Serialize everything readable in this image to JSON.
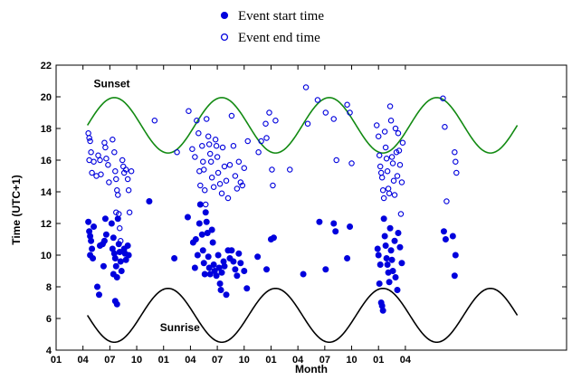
{
  "chart_data": {
    "type": "scatter",
    "xlabel": "Month",
    "ylabel": "Time (UTC+1)",
    "ylim": [
      4,
      22
    ],
    "xlim": [
      0,
      57
    ],
    "yticks": [
      4,
      6,
      8,
      10,
      12,
      14,
      16,
      18,
      20,
      22
    ],
    "xticks": [
      {
        "x": 0,
        "label": "01"
      },
      {
        "x": 3,
        "label": "04"
      },
      {
        "x": 6,
        "label": "07"
      },
      {
        "x": 9,
        "label": "10"
      },
      {
        "x": 12,
        "label": "01"
      },
      {
        "x": 15,
        "label": "04"
      },
      {
        "x": 18,
        "label": "07"
      },
      {
        "x": 21,
        "label": "10"
      },
      {
        "x": 24,
        "label": "01"
      },
      {
        "x": 27,
        "label": "04"
      },
      {
        "x": 30,
        "label": "07"
      },
      {
        "x": 33,
        "label": "10"
      },
      {
        "x": 36,
        "label": "01"
      },
      {
        "x": 39,
        "label": "04"
      }
    ],
    "legend": {
      "placement": "top-center",
      "entries": [
        {
          "label": "Event start time",
          "marker": "filled-circle"
        },
        {
          "label": "Event end time",
          "marker": "open-circle"
        }
      ]
    },
    "annotations": [
      {
        "text": "Sunset",
        "x": 4.2,
        "y": 20.6
      },
      {
        "text": "Sunrise",
        "x": 11.6,
        "y": 5.2
      }
    ],
    "colors": {
      "points": "#0000dd",
      "sunset": "#128a12",
      "sunrise": "#000000"
    },
    "sunset_curve": {
      "x_start": 3.5,
      "x_end": 51.5,
      "center": 18.2,
      "amplitude": 1.75,
      "period": 12,
      "peak_x": 6.5
    },
    "sunrise_curve": {
      "x_start": 3.5,
      "x_end": 51.5,
      "center": 6.2,
      "amplitude": 1.7,
      "period": 12,
      "trough_x": 6.5
    },
    "series": [
      {
        "name": "Event start time",
        "points": [
          [
            3.6,
            12.1
          ],
          [
            3.7,
            11.5
          ],
          [
            3.8,
            11.2
          ],
          [
            3.9,
            10.9
          ],
          [
            4.0,
            10.4
          ],
          [
            3.8,
            10.0
          ],
          [
            4.1,
            9.8
          ],
          [
            4.2,
            11.8
          ],
          [
            4.6,
            8.0
          ],
          [
            4.8,
            7.5
          ],
          [
            4.9,
            10.6
          ],
          [
            5.2,
            10.7
          ],
          [
            5.3,
            9.3
          ],
          [
            5.5,
            12.3
          ],
          [
            5.6,
            11.3
          ],
          [
            5.4,
            10.9
          ],
          [
            6.2,
            12.0
          ],
          [
            6.4,
            11.1
          ],
          [
            6.3,
            10.4
          ],
          [
            6.5,
            10.1
          ],
          [
            6.6,
            9.8
          ],
          [
            6.7,
            9.3
          ],
          [
            6.4,
            8.8
          ],
          [
            6.8,
            8.6
          ],
          [
            6.6,
            7.1
          ],
          [
            6.8,
            6.9
          ],
          [
            7.0,
            10.7
          ],
          [
            7.1,
            10.2
          ],
          [
            7.2,
            9.6
          ],
          [
            7.3,
            9.0
          ],
          [
            6.9,
            12.3
          ],
          [
            7.6,
            10.4
          ],
          [
            7.7,
            10.1
          ],
          [
            7.8,
            9.7
          ],
          [
            8.0,
            10.6
          ],
          [
            8.1,
            10.0
          ],
          [
            10.4,
            13.4
          ],
          [
            13.2,
            9.8
          ],
          [
            14.7,
            12.4
          ],
          [
            15.3,
            10.8
          ],
          [
            15.5,
            9.2
          ],
          [
            15.6,
            11.0
          ],
          [
            15.8,
            10.0
          ],
          [
            16.0,
            12.0
          ],
          [
            16.1,
            13.2
          ],
          [
            16.3,
            11.3
          ],
          [
            16.4,
            10.3
          ],
          [
            16.5,
            9.5
          ],
          [
            16.6,
            8.8
          ],
          [
            16.7,
            12.7
          ],
          [
            16.8,
            12.1
          ],
          [
            16.9,
            11.4
          ],
          [
            17.0,
            9.9
          ],
          [
            17.1,
            9.2
          ],
          [
            17.2,
            8.8
          ],
          [
            17.4,
            11.6
          ],
          [
            17.5,
            10.8
          ],
          [
            17.6,
            9.4
          ],
          [
            17.7,
            9.0
          ],
          [
            17.9,
            8.7
          ],
          [
            18.1,
            10.0
          ],
          [
            18.2,
            9.2
          ],
          [
            18.3,
            8.2
          ],
          [
            18.4,
            7.8
          ],
          [
            18.5,
            8.9
          ],
          [
            18.7,
            9.6
          ],
          [
            18.8,
            9.3
          ],
          [
            19.0,
            7.5
          ],
          [
            19.2,
            10.3
          ],
          [
            19.4,
            9.8
          ],
          [
            19.6,
            10.3
          ],
          [
            19.8,
            9.6
          ],
          [
            20.0,
            9.1
          ],
          [
            20.2,
            8.7
          ],
          [
            20.4,
            10.1
          ],
          [
            20.6,
            9.5
          ],
          [
            21.0,
            9.0
          ],
          [
            21.3,
            7.9
          ],
          [
            22.5,
            9.9
          ],
          [
            23.5,
            9.1
          ],
          [
            24.0,
            11.0
          ],
          [
            24.3,
            11.1
          ],
          [
            27.6,
            8.8
          ],
          [
            29.4,
            12.1
          ],
          [
            30.1,
            9.1
          ],
          [
            31.0,
            12.0
          ],
          [
            31.2,
            11.5
          ],
          [
            32.5,
            9.8
          ],
          [
            32.8,
            11.8
          ],
          [
            35.9,
            10.4
          ],
          [
            36.0,
            10.0
          ],
          [
            36.2,
            9.4
          ],
          [
            36.1,
            8.2
          ],
          [
            36.3,
            7.0
          ],
          [
            36.4,
            6.8
          ],
          [
            36.5,
            6.5
          ],
          [
            36.6,
            12.3
          ],
          [
            36.7,
            11.2
          ],
          [
            36.8,
            10.6
          ],
          [
            36.9,
            9.8
          ],
          [
            37.0,
            9.4
          ],
          [
            37.1,
            8.9
          ],
          [
            37.2,
            8.3
          ],
          [
            37.3,
            11.7
          ],
          [
            37.4,
            10.3
          ],
          [
            37.5,
            9.7
          ],
          [
            37.6,
            9.0
          ],
          [
            37.8,
            10.9
          ],
          [
            37.9,
            8.6
          ],
          [
            38.1,
            7.8
          ],
          [
            38.2,
            11.4
          ],
          [
            38.4,
            10.5
          ],
          [
            38.6,
            9.5
          ],
          [
            43.3,
            11.5
          ],
          [
            43.5,
            11.0
          ],
          [
            44.3,
            11.2
          ],
          [
            44.6,
            10.0
          ],
          [
            44.5,
            8.7
          ]
        ]
      },
      {
        "name": "Event end time",
        "points": [
          [
            3.6,
            17.7
          ],
          [
            3.7,
            17.4
          ],
          [
            3.8,
            17.2
          ],
          [
            3.9,
            16.5
          ],
          [
            3.7,
            16.0
          ],
          [
            4.0,
            15.2
          ],
          [
            4.2,
            15.9
          ],
          [
            4.5,
            15.0
          ],
          [
            4.7,
            16.3
          ],
          [
            4.9,
            16.0
          ],
          [
            5.0,
            15.1
          ],
          [
            5.4,
            17.1
          ],
          [
            5.5,
            16.8
          ],
          [
            5.6,
            16.1
          ],
          [
            5.8,
            15.7
          ],
          [
            5.9,
            14.6
          ],
          [
            6.3,
            17.3
          ],
          [
            6.5,
            16.5
          ],
          [
            6.6,
            15.3
          ],
          [
            6.7,
            14.8
          ],
          [
            6.8,
            14.1
          ],
          [
            6.9,
            13.8
          ],
          [
            6.7,
            12.7
          ],
          [
            7.0,
            12.6
          ],
          [
            7.1,
            11.7
          ],
          [
            7.2,
            10.9
          ],
          [
            7.4,
            16.0
          ],
          [
            7.5,
            15.6
          ],
          [
            7.6,
            15.2
          ],
          [
            7.8,
            15.4
          ],
          [
            8.0,
            14.8
          ],
          [
            8.1,
            14.1
          ],
          [
            8.2,
            12.7
          ],
          [
            8.4,
            15.3
          ],
          [
            11.0,
            18.5
          ],
          [
            13.5,
            16.5
          ],
          [
            14.8,
            19.1
          ],
          [
            15.2,
            16.7
          ],
          [
            15.5,
            16.2
          ],
          [
            15.7,
            18.5
          ],
          [
            15.9,
            17.7
          ],
          [
            16.0,
            15.3
          ],
          [
            16.1,
            14.4
          ],
          [
            16.3,
            16.9
          ],
          [
            16.4,
            15.9
          ],
          [
            16.5,
            15.4
          ],
          [
            16.6,
            14.1
          ],
          [
            16.7,
            13.2
          ],
          [
            16.8,
            18.6
          ],
          [
            17.0,
            17.5
          ],
          [
            17.1,
            17.0
          ],
          [
            17.2,
            16.4
          ],
          [
            17.3,
            15.9
          ],
          [
            17.4,
            14.9
          ],
          [
            17.6,
            14.3
          ],
          [
            17.8,
            17.3
          ],
          [
            17.9,
            16.9
          ],
          [
            18.0,
            16.2
          ],
          [
            18.1,
            15.2
          ],
          [
            18.3,
            14.5
          ],
          [
            18.5,
            13.9
          ],
          [
            18.6,
            16.8
          ],
          [
            18.8,
            15.6
          ],
          [
            19.0,
            14.7
          ],
          [
            19.2,
            13.6
          ],
          [
            19.4,
            15.7
          ],
          [
            19.6,
            18.8
          ],
          [
            19.8,
            16.9
          ],
          [
            20.0,
            15.0
          ],
          [
            20.2,
            14.2
          ],
          [
            20.4,
            15.9
          ],
          [
            20.6,
            14.6
          ],
          [
            20.8,
            14.4
          ],
          [
            21.0,
            15.5
          ],
          [
            21.4,
            17.2
          ],
          [
            22.6,
            16.5
          ],
          [
            22.9,
            17.2
          ],
          [
            23.4,
            18.3
          ],
          [
            23.5,
            17.4
          ],
          [
            23.8,
            19.0
          ],
          [
            24.1,
            15.4
          ],
          [
            24.2,
            14.4
          ],
          [
            24.5,
            18.5
          ],
          [
            26.1,
            15.4
          ],
          [
            27.9,
            20.6
          ],
          [
            28.1,
            18.3
          ],
          [
            29.2,
            19.8
          ],
          [
            30.1,
            19.0
          ],
          [
            31.0,
            18.6
          ],
          [
            31.3,
            16.0
          ],
          [
            32.5,
            19.5
          ],
          [
            32.8,
            19.0
          ],
          [
            33.0,
            15.8
          ],
          [
            35.8,
            18.2
          ],
          [
            36.0,
            17.5
          ],
          [
            36.1,
            16.3
          ],
          [
            36.2,
            15.6
          ],
          [
            36.3,
            15.2
          ],
          [
            36.4,
            14.9
          ],
          [
            36.5,
            14.1
          ],
          [
            36.6,
            13.6
          ],
          [
            36.7,
            17.8
          ],
          [
            36.8,
            16.8
          ],
          [
            36.9,
            16.1
          ],
          [
            37.0,
            15.3
          ],
          [
            37.1,
            14.2
          ],
          [
            37.2,
            13.9
          ],
          [
            37.3,
            19.4
          ],
          [
            37.4,
            18.5
          ],
          [
            37.5,
            16.2
          ],
          [
            37.6,
            15.8
          ],
          [
            37.7,
            14.7
          ],
          [
            37.8,
            13.8
          ],
          [
            37.9,
            18.0
          ],
          [
            38.0,
            16.5
          ],
          [
            38.1,
            15.0
          ],
          [
            38.2,
            17.7
          ],
          [
            38.3,
            16.6
          ],
          [
            38.4,
            15.7
          ],
          [
            38.6,
            14.6
          ],
          [
            38.5,
            12.6
          ],
          [
            38.7,
            17.1
          ],
          [
            43.2,
            19.9
          ],
          [
            43.4,
            18.1
          ],
          [
            43.6,
            13.4
          ],
          [
            44.5,
            16.5
          ],
          [
            44.6,
            15.9
          ],
          [
            44.7,
            15.2
          ]
        ]
      }
    ]
  }
}
